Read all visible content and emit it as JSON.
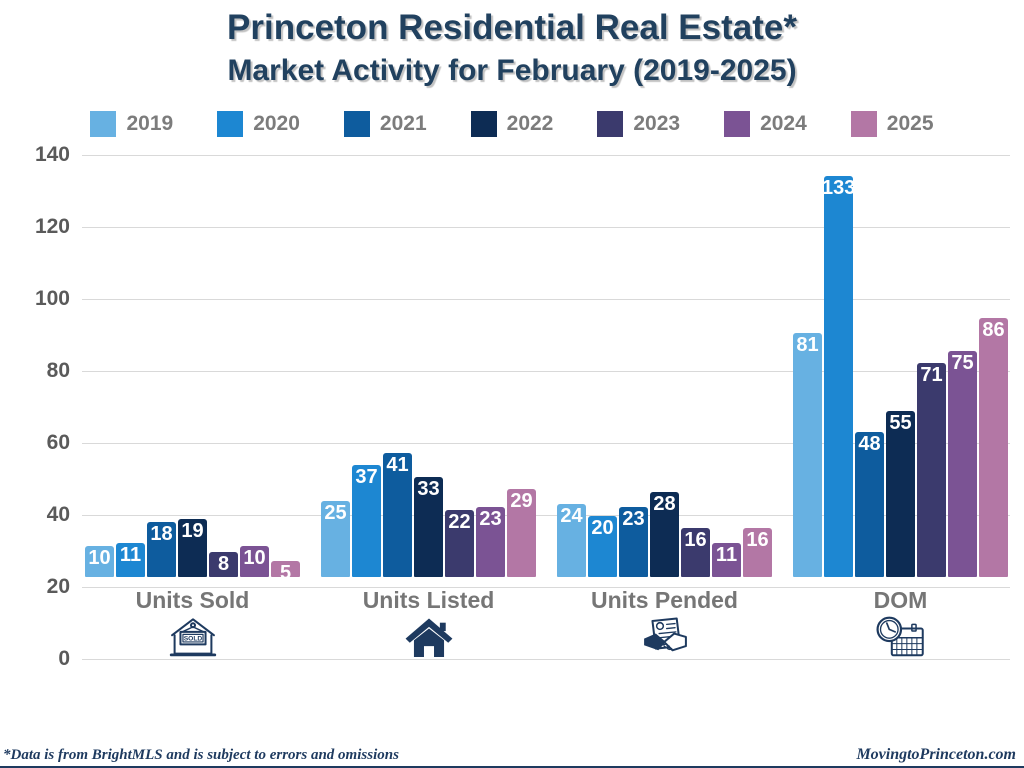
{
  "title": {
    "line1": "Princeton Residential Real Estate*",
    "line2": "Market Activity for February (2019-2025)"
  },
  "chart_data": {
    "type": "bar",
    "title": "Princeton Residential Real Estate* Market Activity for February (2019-2025)",
    "categories": [
      "Units Sold",
      "Units Listed",
      "Units Pended",
      "DOM"
    ],
    "series": [
      {
        "name": "2019",
        "color": "#67b1e2",
        "values": [
          10,
          25,
          24,
          81
        ]
      },
      {
        "name": "2020",
        "color": "#1d87d2",
        "values": [
          11,
          37,
          20,
          133
        ]
      },
      {
        "name": "2021",
        "color": "#0e5c9e",
        "values": [
          18,
          41,
          23,
          48
        ]
      },
      {
        "name": "2022",
        "color": "#0d2c54",
        "values": [
          19,
          33,
          28,
          55
        ]
      },
      {
        "name": "2023",
        "color": "#3b3a6d",
        "values": [
          8,
          22,
          16,
          71
        ]
      },
      {
        "name": "2024",
        "color": "#7b5394",
        "values": [
          10,
          23,
          11,
          75
        ]
      },
      {
        "name": "2025",
        "color": "#b377a5",
        "values": [
          5,
          29,
          16,
          86
        ]
      }
    ],
    "xlabel": "",
    "ylabel": "",
    "ylim": [
      0,
      140
    ],
    "yticks": [
      0,
      20,
      40,
      60,
      80,
      100,
      120,
      140
    ],
    "grid": true,
    "legend_position": "top"
  },
  "icons": {
    "sold_label": "SOLD",
    "category_icons": [
      "house-sold-icon",
      "house-icon",
      "handshake-contract-icon",
      "clock-calendar-icon"
    ]
  },
  "footer": {
    "left": "*Data is from BrightMLS and is subject to errors and omissions",
    "right": "MovingtoPrinceton.com"
  },
  "colors": {
    "title_navy": "#21415f",
    "icon_navy": "#1e3a5f",
    "grid": "#d9d9d9",
    "tick_text": "#5a5a5a",
    "legend_text": "#7c7c7c",
    "category_text": "#767676",
    "bar_value_text": "#ffffff"
  }
}
